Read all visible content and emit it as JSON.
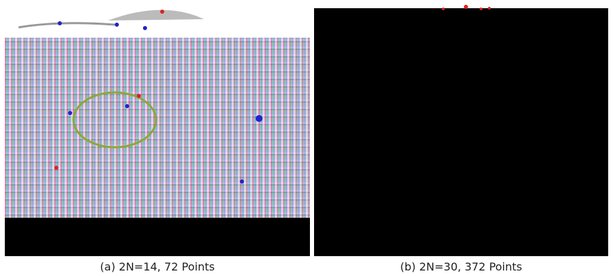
{
  "panels": [
    {
      "caption": "(a) 2N=14, 72 Points"
    },
    {
      "caption": "(b) 2N=30, 372 Points"
    }
  ]
}
